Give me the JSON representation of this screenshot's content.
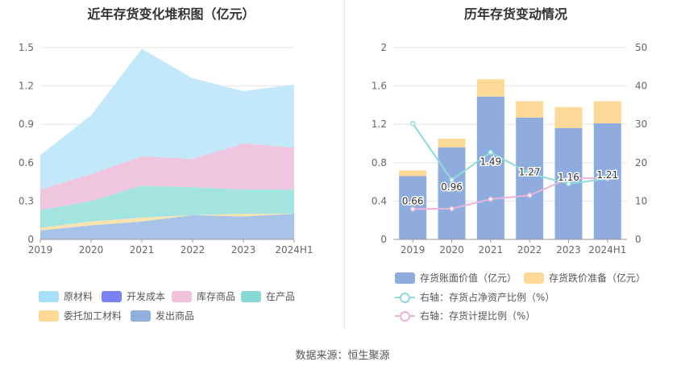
{
  "source_text": "数据来源：恒生聚源",
  "chart_data": [
    {
      "type": "area",
      "title": "近年存货变化堆积图（亿元）",
      "categories": [
        "2019",
        "2020",
        "2021",
        "2022",
        "2023",
        "2024H1"
      ],
      "ylim": [
        0,
        1.5
      ],
      "yticks": [
        "0",
        "0.3",
        "0.6",
        "0.9",
        "1.2",
        "1.5"
      ],
      "grid": true,
      "legend_position": "bottom",
      "series": [
        {
          "name": "发出商品",
          "color": "#a8c3e8",
          "values": [
            0.07,
            0.11,
            0.14,
            0.19,
            0.18,
            0.2
          ]
        },
        {
          "name": "委托加工材料",
          "color": "#fbe3b0",
          "values": [
            0.02,
            0.03,
            0.03,
            0.0,
            0.02,
            0.0
          ]
        },
        {
          "name": "在产品",
          "color": "#a4e4e0",
          "values": [
            0.14,
            0.16,
            0.25,
            0.22,
            0.19,
            0.19
          ]
        },
        {
          "name": "开发成本",
          "color": "#7b83f0",
          "values": [
            0,
            0,
            0,
            0,
            0,
            0
          ]
        },
        {
          "name": "库存商品",
          "color": "#efc6e0",
          "values": [
            0.16,
            0.21,
            0.23,
            0.22,
            0.36,
            0.33
          ]
        },
        {
          "name": "原材料",
          "color": "#c2e8fa",
          "values": [
            0.27,
            0.46,
            0.84,
            0.63,
            0.41,
            0.49
          ]
        }
      ],
      "legend": [
        {
          "name": "原材料",
          "color": "#a7dff8"
        },
        {
          "name": "开发成本",
          "color": "#7b83f0"
        },
        {
          "name": "库存商品",
          "color": "#f0c0dc"
        },
        {
          "name": "在产品",
          "color": "#88d8d6"
        },
        {
          "name": "委托加工材料",
          "color": "#fddb94"
        },
        {
          "name": "发出商品",
          "color": "#8fb0de"
        }
      ]
    },
    {
      "type": "bar",
      "title": "历年存货变动情况",
      "categories": [
        "2019",
        "2020",
        "2021",
        "2022",
        "2023",
        "2024H1"
      ],
      "ylim": [
        0,
        2
      ],
      "yticks": [
        "0",
        "0.4",
        "0.8",
        "1.2",
        "1.6",
        "2"
      ],
      "y2lim": [
        0,
        50
      ],
      "y2ticks": [
        "0",
        "10",
        "20",
        "30",
        "40",
        "50"
      ],
      "grid": true,
      "legend_position": "bottom",
      "series": [
        {
          "name": "存货账面价值（亿元）",
          "kind": "bar",
          "axis": "left",
          "color": "#8eadde",
          "values": [
            0.66,
            0.96,
            1.49,
            1.27,
            1.16,
            1.21
          ],
          "labels": [
            "0.66",
            "0.96",
            "1.49",
            "1.27",
            "1.16",
            "1.21"
          ]
        },
        {
          "name": "存货跌价准备（亿元）",
          "kind": "bar",
          "axis": "left",
          "color": "#fdd998",
          "values": [
            0.06,
            0.09,
            0.18,
            0.17,
            0.22,
            0.23
          ]
        },
        {
          "name": "右轴：存货占净资产比例（%）",
          "kind": "line",
          "axis": "right",
          "color": "#8fdbdc",
          "values": [
            30.2,
            15.5,
            22.7,
            17.2,
            14.5,
            15.8
          ]
        },
        {
          "name": "右轴：存货计提比例（%）",
          "kind": "line",
          "axis": "right",
          "color": "#e8b4dc",
          "values": [
            7.9,
            8.0,
            10.5,
            11.5,
            15.9,
            16.0
          ]
        }
      ]
    }
  ]
}
